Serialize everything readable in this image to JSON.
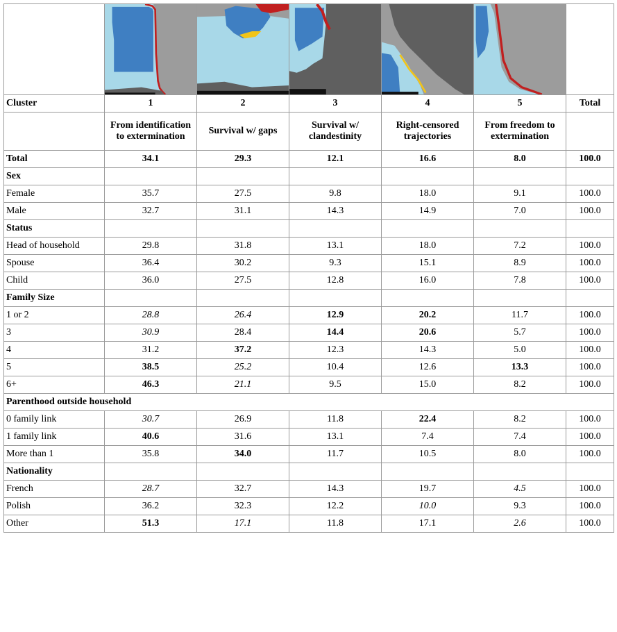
{
  "header": {
    "cluster_label": "Cluster",
    "total_label": "Total"
  },
  "clusters": [
    {
      "number": "1",
      "name": "From identification to extermination"
    },
    {
      "number": "2",
      "name": "Survival w/ gaps"
    },
    {
      "number": "3",
      "name": "Survival w/ clandestinity"
    },
    {
      "number": "4",
      "name": "Right-censored trajectories"
    },
    {
      "number": "5",
      "name": "From freedom to extermination"
    }
  ],
  "thumbnail_colors": {
    "light_blue": "#a8d8e8",
    "mid_blue": "#3f7fc2",
    "dark_gray": "#5f5f5f",
    "light_gray": "#9c9c9c",
    "red": "#c11f1f",
    "yellow": "#f2c417",
    "black": "#111111"
  },
  "rows": [
    {
      "kind": "data",
      "label": "Total",
      "label_bold": true,
      "cells": [
        [
          "34.1",
          "b"
        ],
        [
          "29.3",
          "b"
        ],
        [
          "12.1",
          "b"
        ],
        [
          "16.6",
          "b"
        ],
        [
          "8.0",
          "b"
        ]
      ],
      "total": [
        "100.0",
        "b"
      ]
    },
    {
      "kind": "section",
      "label": "Sex"
    },
    {
      "kind": "data",
      "label": "Female",
      "cells": [
        [
          "35.7",
          ""
        ],
        [
          "27.5",
          ""
        ],
        [
          "9.8",
          ""
        ],
        [
          "18.0",
          ""
        ],
        [
          "9.1",
          ""
        ]
      ],
      "total": [
        "100.0",
        ""
      ]
    },
    {
      "kind": "data",
      "label": "Male",
      "cells": [
        [
          "32.7",
          ""
        ],
        [
          "31.1",
          ""
        ],
        [
          "14.3",
          ""
        ],
        [
          "14.9",
          ""
        ],
        [
          "7.0",
          ""
        ]
      ],
      "total": [
        "100.0",
        ""
      ]
    },
    {
      "kind": "section",
      "label": "Status"
    },
    {
      "kind": "data",
      "label": "Head of household",
      "cells": [
        [
          "29.8",
          ""
        ],
        [
          "31.8",
          ""
        ],
        [
          "13.1",
          ""
        ],
        [
          "18.0",
          ""
        ],
        [
          "7.2",
          ""
        ]
      ],
      "total": [
        "100.0",
        ""
      ]
    },
    {
      "kind": "data",
      "label": "Spouse",
      "cells": [
        [
          "36.4",
          ""
        ],
        [
          "30.2",
          ""
        ],
        [
          "9.3",
          ""
        ],
        [
          "15.1",
          ""
        ],
        [
          "8.9",
          ""
        ]
      ],
      "total": [
        "100.0",
        ""
      ]
    },
    {
      "kind": "data",
      "label": "Child",
      "cells": [
        [
          "36.0",
          ""
        ],
        [
          "27.5",
          ""
        ],
        [
          "12.8",
          ""
        ],
        [
          "16.0",
          ""
        ],
        [
          "7.8",
          ""
        ]
      ],
      "total": [
        "100.0",
        ""
      ]
    },
    {
      "kind": "section",
      "label": "Family Size"
    },
    {
      "kind": "data",
      "label": "1 or 2",
      "cells": [
        [
          "28.8",
          "i"
        ],
        [
          "26.4",
          "i"
        ],
        [
          "12.9",
          "b"
        ],
        [
          "20.2",
          "b"
        ],
        [
          "11.7",
          ""
        ]
      ],
      "total": [
        "100.0",
        ""
      ]
    },
    {
      "kind": "data",
      "label": "3",
      "cells": [
        [
          "30.9",
          "i"
        ],
        [
          "28.4",
          ""
        ],
        [
          "14.4",
          "b"
        ],
        [
          "20.6",
          "b"
        ],
        [
          "5.7",
          ""
        ]
      ],
      "total": [
        "100.0",
        ""
      ]
    },
    {
      "kind": "data",
      "label": "4",
      "cells": [
        [
          "31.2",
          ""
        ],
        [
          "37.2",
          "b"
        ],
        [
          "12.3",
          ""
        ],
        [
          "14.3",
          ""
        ],
        [
          "5.0",
          ""
        ]
      ],
      "total": [
        "100.0",
        ""
      ]
    },
    {
      "kind": "data",
      "label": "5",
      "cells": [
        [
          "38.5",
          "b"
        ],
        [
          "25.2",
          "i"
        ],
        [
          "10.4",
          ""
        ],
        [
          "12.6",
          ""
        ],
        [
          "13.3",
          "b"
        ]
      ],
      "total": [
        "100.0",
        ""
      ]
    },
    {
      "kind": "data",
      "label": "6+",
      "cells": [
        [
          "46.3",
          "b"
        ],
        [
          "21.1",
          "i"
        ],
        [
          "9.5",
          ""
        ],
        [
          "15.0",
          ""
        ],
        [
          "8.2",
          ""
        ]
      ],
      "total": [
        "100.0",
        ""
      ]
    },
    {
      "kind": "section_wide",
      "label": "Parenthood outside household"
    },
    {
      "kind": "data",
      "label": "0 family link",
      "cells": [
        [
          "30.7",
          "i"
        ],
        [
          "26.9",
          ""
        ],
        [
          "11.8",
          ""
        ],
        [
          "22.4",
          "b"
        ],
        [
          "8.2",
          ""
        ]
      ],
      "total": [
        "100.0",
        ""
      ]
    },
    {
      "kind": "data",
      "label": "1 family link",
      "cells": [
        [
          "40.6",
          "b"
        ],
        [
          "31.6",
          ""
        ],
        [
          "13.1",
          ""
        ],
        [
          "7.4",
          ""
        ],
        [
          "7.4",
          ""
        ]
      ],
      "total": [
        "100.0",
        ""
      ]
    },
    {
      "kind": "data",
      "label": "More than 1",
      "cells": [
        [
          "35.8",
          ""
        ],
        [
          "34.0",
          "b"
        ],
        [
          "11.7",
          ""
        ],
        [
          "10.5",
          ""
        ],
        [
          "8.0",
          ""
        ]
      ],
      "total": [
        "100.0",
        ""
      ]
    },
    {
      "kind": "section",
      "label": "Nationality"
    },
    {
      "kind": "data",
      "label": "French",
      "cells": [
        [
          "28.7",
          "i"
        ],
        [
          "32.7",
          ""
        ],
        [
          "14.3",
          ""
        ],
        [
          "19.7",
          ""
        ],
        [
          "4.5",
          "i"
        ]
      ],
      "total": [
        "100.0",
        ""
      ]
    },
    {
      "kind": "data",
      "label": "Polish",
      "cells": [
        [
          "36.2",
          ""
        ],
        [
          "32.3",
          ""
        ],
        [
          "12.2",
          ""
        ],
        [
          "10.0",
          "i"
        ],
        [
          "9.3",
          ""
        ]
      ],
      "total": [
        "100.0",
        ""
      ]
    },
    {
      "kind": "data",
      "label": "Other",
      "cells": [
        [
          "51.3",
          "b"
        ],
        [
          "17.1",
          "i"
        ],
        [
          "11.8",
          ""
        ],
        [
          "17.1",
          ""
        ],
        [
          "2.6",
          "i"
        ]
      ],
      "total": [
        "100.0",
        ""
      ]
    }
  ]
}
